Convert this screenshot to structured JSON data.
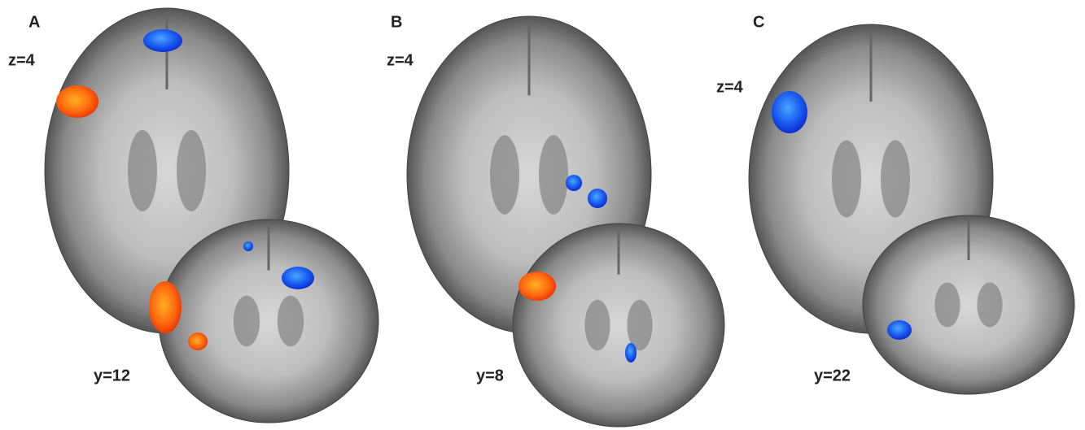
{
  "panels": [
    {
      "label": "A",
      "axial_slice": "z=4",
      "coronal_slice": "y=12"
    },
    {
      "label": "B",
      "axial_slice": "z=4",
      "coronal_slice": "y=8"
    },
    {
      "label": "C",
      "axial_slice": "z=4",
      "coronal_slice": "y=22"
    }
  ]
}
